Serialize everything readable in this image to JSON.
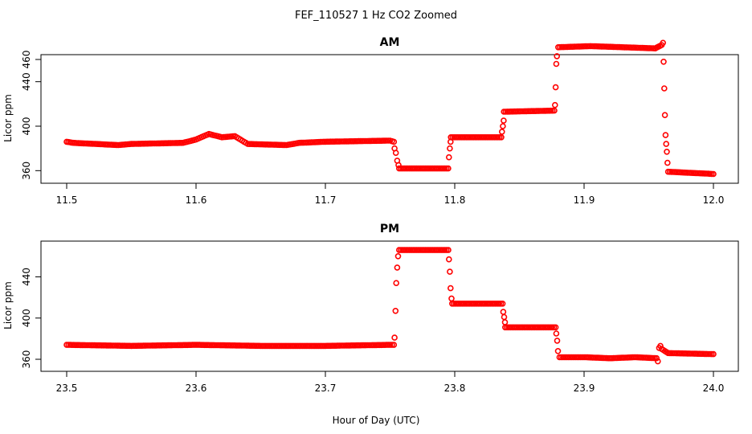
{
  "figure": {
    "title": "FEF_110527  1 Hz CO2 Zoomed",
    "xlabel": "Hour of Day (UTC)",
    "marker_color": "#ff0000"
  },
  "chart_data": [
    {
      "type": "scatter",
      "title": "AM",
      "xlabel": "",
      "ylabel": "Licor ppm",
      "xlim": [
        11.5,
        12.0
      ],
      "ylim": [
        353,
        460
      ],
      "xticks": [
        11.5,
        11.6,
        11.7,
        11.8,
        11.9,
        12.0
      ],
      "xtick_labels": [
        "11.5",
        "11.6",
        "11.7",
        "11.8",
        "11.9",
        "12.0"
      ],
      "yticks": [
        360,
        400,
        440,
        460
      ],
      "ytick_labels": [
        "360",
        "400",
        "440",
        "460"
      ],
      "marker": "open-circle",
      "color": "#ff0000",
      "segments": [
        {
          "x": [
            11.5,
            11.505,
            11.54,
            11.55,
            11.59,
            11.6,
            11.61,
            11.62,
            11.63,
            11.64,
            11.67,
            11.68,
            11.7,
            11.75,
            11.753
          ],
          "y": [
            386,
            385,
            383,
            384,
            385,
            388,
            393,
            390,
            391,
            384,
            383,
            385,
            386,
            387,
            386
          ]
        },
        {
          "x": [
            11.7535,
            11.7545,
            11.7555,
            11.7565
          ],
          "y": [
            380,
            376,
            369,
            365
          ]
        },
        {
          "x": [
            11.757,
            11.795
          ],
          "y": [
            362,
            362
          ]
        },
        {
          "x": [
            11.7955,
            11.7962,
            11.7968
          ],
          "y": [
            372,
            380,
            386
          ]
        },
        {
          "x": [
            11.797,
            11.836
          ],
          "y": [
            390,
            390
          ]
        },
        {
          "x": [
            11.8365,
            11.8372,
            11.8378
          ],
          "y": [
            395,
            400,
            405
          ]
        },
        {
          "x": [
            11.838,
            11.877
          ],
          "y": [
            413,
            414
          ]
        },
        {
          "x": [
            11.8775,
            11.878,
            11.8785,
            11.879
          ],
          "y": [
            419,
            435,
            456,
            463
          ]
        },
        {
          "x": [
            11.88,
            11.905,
            11.93,
            11.955,
            11.96
          ],
          "y": [
            471,
            472,
            471,
            470,
            473
          ]
        },
        {
          "x": [
            11.961,
            11.9615,
            11.962,
            11.9625,
            11.963,
            11.9635,
            11.964,
            11.9645
          ],
          "y": [
            475,
            458,
            434,
            410,
            392,
            384,
            377,
            367
          ]
        },
        {
          "x": [
            11.965,
            12.0
          ],
          "y": [
            359,
            357
          ]
        }
      ]
    },
    {
      "type": "scatter",
      "title": "PM",
      "xlabel": "",
      "ylabel": "Licor ppm",
      "xlim": [
        23.5,
        24.0
      ],
      "ylim": [
        353,
        470
      ],
      "xticks": [
        23.5,
        23.6,
        23.7,
        23.8,
        23.9,
        24.0
      ],
      "xtick_labels": [
        "23.5",
        "23.6",
        "23.7",
        "23.8",
        "23.9",
        "24.0"
      ],
      "yticks": [
        360,
        400,
        440
      ],
      "ytick_labels": [
        "360",
        "400",
        "440"
      ],
      "marker": "open-circle",
      "color": "#ff0000",
      "segments": [
        {
          "x": [
            23.5,
            23.55,
            23.6,
            23.65,
            23.7,
            23.75,
            23.753
          ],
          "y": [
            374,
            373,
            374,
            373,
            373,
            374,
            374
          ]
        },
        {
          "x": [
            23.7535,
            23.7542,
            23.7548,
            23.7555,
            23.7562
          ],
          "y": [
            381,
            407,
            434,
            449,
            460
          ]
        },
        {
          "x": [
            23.757,
            23.795
          ],
          "y": [
            466,
            466
          ]
        },
        {
          "x": [
            23.7955,
            23.7962,
            23.7968,
            23.7975
          ],
          "y": [
            457,
            445,
            429,
            419
          ]
        },
        {
          "x": [
            23.798,
            23.837
          ],
          "y": [
            414,
            414
          ]
        },
        {
          "x": [
            23.8375,
            23.8382,
            23.8388
          ],
          "y": [
            406,
            401,
            396
          ]
        },
        {
          "x": [
            23.839,
            23.878
          ],
          "y": [
            391,
            391
          ]
        },
        {
          "x": [
            23.8785,
            23.8792,
            23.8798
          ],
          "y": [
            385,
            378,
            368
          ]
        },
        {
          "x": [
            23.881,
            23.9,
            23.92,
            23.94,
            23.956
          ],
          "y": [
            362,
            362,
            361,
            362,
            361
          ]
        },
        {
          "x": [
            23.957,
            23.958,
            23.959
          ],
          "y": [
            358,
            371,
            373
          ]
        },
        {
          "x": [
            23.96,
            23.965,
            24.0
          ],
          "y": [
            370,
            366,
            365
          ]
        }
      ]
    }
  ]
}
